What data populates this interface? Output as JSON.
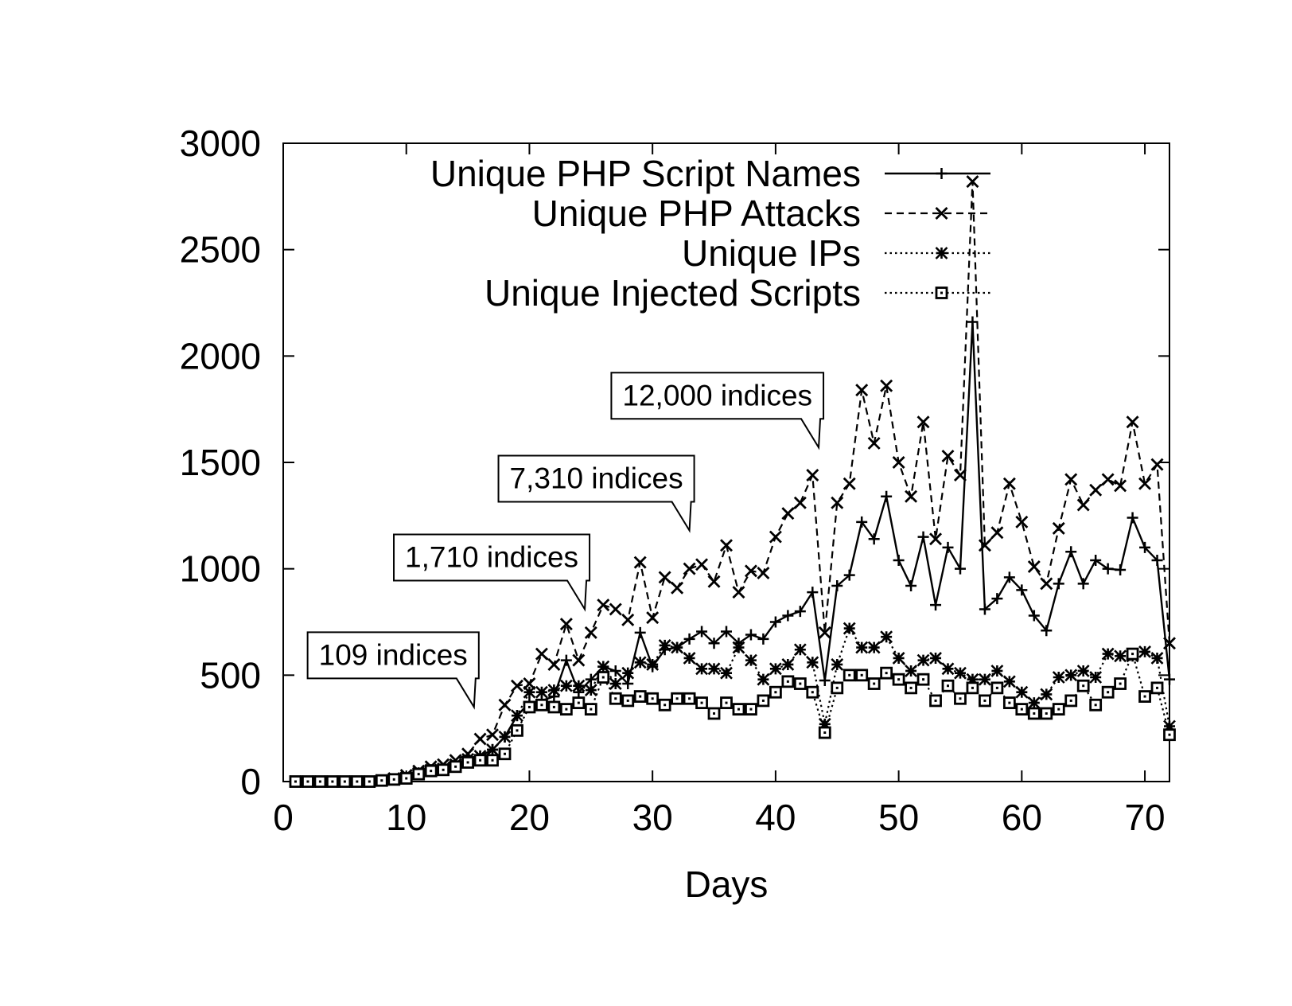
{
  "chart_data": {
    "type": "line",
    "title": "",
    "xlabel": "Days",
    "ylabel": "",
    "xlim": [
      0,
      72
    ],
    "ylim": [
      0,
      3000
    ],
    "xticks": [
      0,
      10,
      20,
      30,
      40,
      50,
      60,
      70
    ],
    "yticks": [
      0,
      500,
      1000,
      1500,
      2000,
      2500,
      3000
    ],
    "grid": false,
    "legend_position": "top-right",
    "x": [
      1,
      2,
      3,
      4,
      5,
      6,
      7,
      8,
      9,
      10,
      11,
      12,
      13,
      14,
      15,
      16,
      17,
      18,
      19,
      20,
      21,
      22,
      23,
      24,
      25,
      26,
      27,
      28,
      29,
      30,
      31,
      32,
      33,
      34,
      35,
      36,
      37,
      38,
      39,
      40,
      41,
      42,
      43,
      44,
      45,
      46,
      47,
      48,
      49,
      50,
      51,
      52,
      53,
      54,
      55,
      56,
      57,
      58,
      59,
      60,
      61,
      62,
      63,
      64,
      65,
      66,
      67,
      68,
      69,
      70,
      71,
      72
    ],
    "series": [
      {
        "name": "Unique PHP Script Names",
        "line": "solid",
        "marker": "plus",
        "values": [
          0,
          0,
          0,
          0,
          0,
          0,
          0,
          5,
          10,
          20,
          40,
          55,
          60,
          80,
          105,
          120,
          150,
          210,
          310,
          370,
          380,
          400,
          570,
          420,
          480,
          540,
          520,
          460,
          700,
          540,
          620,
          630,
          670,
          705,
          650,
          705,
          650,
          690,
          670,
          750,
          780,
          800,
          890,
          475,
          920,
          970,
          1220,
          1140,
          1340,
          1040,
          920,
          1150,
          830,
          1100,
          1000,
          2160,
          810,
          860,
          960,
          900,
          780,
          710,
          930,
          1080,
          930,
          1040,
          1000,
          995,
          1240,
          1100,
          1040,
          480
        ]
      },
      {
        "name": "Unique PHP Attacks",
        "line": "dashed",
        "marker": "x",
        "values": [
          0,
          0,
          0,
          0,
          0,
          0,
          0,
          5,
          15,
          30,
          50,
          70,
          80,
          100,
          130,
          200,
          220,
          360,
          450,
          460,
          600,
          550,
          740,
          570,
          700,
          830,
          810,
          760,
          1030,
          770,
          960,
          910,
          1000,
          1020,
          940,
          1110,
          890,
          990,
          980,
          1150,
          1260,
          1310,
          1440,
          700,
          1310,
          1400,
          1840,
          1590,
          1860,
          1500,
          1340,
          1690,
          1140,
          1530,
          1440,
          2820,
          1110,
          1170,
          1400,
          1220,
          1010,
          930,
          1190,
          1420,
          1300,
          1370,
          1420,
          1390,
          1690,
          1400,
          1490,
          650
        ]
      },
      {
        "name": "Unique IPs",
        "line": "dotted",
        "marker": "star",
        "values": [
          0,
          0,
          0,
          0,
          0,
          0,
          0,
          5,
          10,
          20,
          40,
          55,
          60,
          80,
          105,
          120,
          150,
          210,
          310,
          420,
          420,
          430,
          450,
          450,
          430,
          540,
          460,
          510,
          560,
          550,
          640,
          630,
          580,
          530,
          530,
          510,
          630,
          570,
          480,
          530,
          550,
          620,
          560,
          270,
          550,
          720,
          630,
          630,
          680,
          580,
          520,
          570,
          580,
          530,
          510,
          480,
          480,
          520,
          470,
          420,
          370,
          410,
          490,
          500,
          520,
          490,
          600,
          590,
          590,
          610,
          580,
          260
        ]
      },
      {
        "name": "Unique Injected Scripts",
        "line": "dotted",
        "marker": "square",
        "values": [
          0,
          0,
          0,
          0,
          0,
          0,
          0,
          5,
          10,
          15,
          35,
          50,
          55,
          70,
          90,
          100,
          100,
          130,
          240,
          350,
          360,
          350,
          340,
          370,
          340,
          490,
          390,
          380,
          400,
          390,
          360,
          390,
          390,
          370,
          320,
          370,
          340,
          340,
          380,
          420,
          470,
          460,
          420,
          230,
          440,
          500,
          500,
          460,
          510,
          480,
          440,
          480,
          380,
          450,
          390,
          440,
          380,
          440,
          370,
          340,
          320,
          320,
          340,
          380,
          450,
          360,
          420,
          460,
          600,
          400,
          440,
          220
        ]
      }
    ],
    "annotations": [
      {
        "text": "109 indices",
        "x": 15.5,
        "y": 350
      },
      {
        "text": "1,710 indices",
        "x": 24.5,
        "y": 810
      },
      {
        "text": "7,310 indices",
        "x": 33,
        "y": 1180
      },
      {
        "text": "12,000 indices",
        "x": 43.5,
        "y": 1570
      }
    ]
  }
}
